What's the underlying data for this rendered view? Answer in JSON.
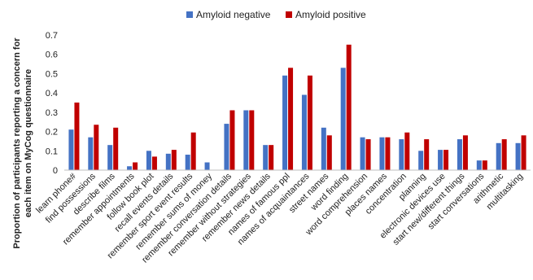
{
  "chart_data": {
    "type": "bar",
    "ylabel_line1": "Proportion of participants reporting a concern for",
    "ylabel_line2": "each item on MyCog questionnaire",
    "ylim": [
      0,
      0.7
    ],
    "yticks": [
      "0",
      "0.1",
      "0.2",
      "0.3",
      "0.4",
      "0.5",
      "0.6",
      "0.7"
    ],
    "legend_position": "top-center",
    "grid": false,
    "categories": [
      "learn phone#",
      "find possessions",
      "describe films",
      "remember appointments",
      "follow book plot",
      "recall events details",
      "remember sport event results",
      "remember sums of money",
      "remember conversation details",
      "remember without strategies",
      "remember news details",
      "names of famous ppl",
      "names of acquaintances",
      "street names",
      "word finding",
      "word comprehension",
      "places names",
      "concentration",
      "planning",
      "electronic devices use",
      "start new/different things",
      "start conversations",
      "arithmetic",
      "multitasking"
    ],
    "series": [
      {
        "name": "Amyloid negative",
        "color": "#4472C4",
        "values": [
          0.21,
          0.17,
          0.13,
          0.02,
          0.1,
          0.085,
          0.08,
          0.04,
          0.24,
          0.31,
          0.13,
          0.49,
          0.39,
          0.22,
          0.53,
          0.17,
          0.17,
          0.16,
          0.1,
          0.105,
          0.16,
          0.05,
          0.14,
          0.14
        ]
      },
      {
        "name": "Amyloid positive",
        "color": "#C00000",
        "values": [
          0.35,
          0.235,
          0.22,
          0.04,
          0.07,
          0.105,
          0.195,
          0.0,
          0.31,
          0.31,
          0.13,
          0.53,
          0.49,
          0.18,
          0.65,
          0.16,
          0.17,
          0.195,
          0.16,
          0.105,
          0.18,
          0.05,
          0.16,
          0.18
        ]
      }
    ]
  }
}
